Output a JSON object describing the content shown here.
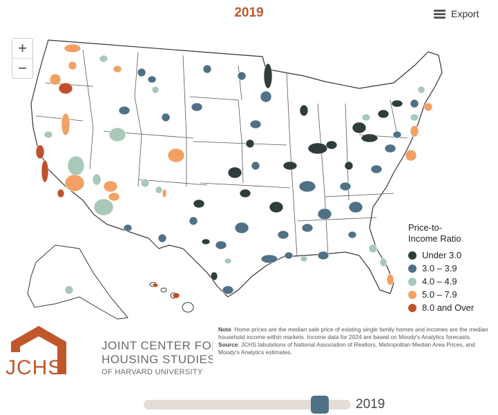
{
  "title": "2019",
  "export": {
    "label": "Export",
    "icon": "hamburger-menu-icon"
  },
  "zoom": {
    "in_label": "+",
    "out_label": "−"
  },
  "legend": {
    "title": "Price-to-Income Ratio",
    "items": [
      {
        "label": "Under 3.0",
        "color": "#2f3d3c"
      },
      {
        "label": "3.0 – 3.9",
        "color": "#4e7186"
      },
      {
        "label": "4.0 – 4.9",
        "color": "#a8c9b8"
      },
      {
        "label": "5.0 – 7.9",
        "color": "#f2a064"
      },
      {
        "label": "8.0 and Over",
        "color": "#c0502b"
      }
    ]
  },
  "note": {
    "note_label": "Note",
    "note_text": ": Home prices are the median sale price of existing single family homes and incomes are the median household income within markets. Income data for 2024 are based on Moody's Analytics forecasts.",
    "source_label": "Source",
    "source_text": ": JCHS tabulations of National Association of Realtors, Metropolitan Median Area Prices, and Moody's Analytics estimates."
  },
  "logo": {
    "acronym": "JCHS",
    "line1": "JOINT CENTER FOR",
    "line2": "HOUSING STUDIES",
    "line3": "OF HARVARD UNIVERSITY",
    "color": "#c0572b"
  },
  "slider": {
    "value_label": "2019",
    "position_fraction": 0.85
  }
}
